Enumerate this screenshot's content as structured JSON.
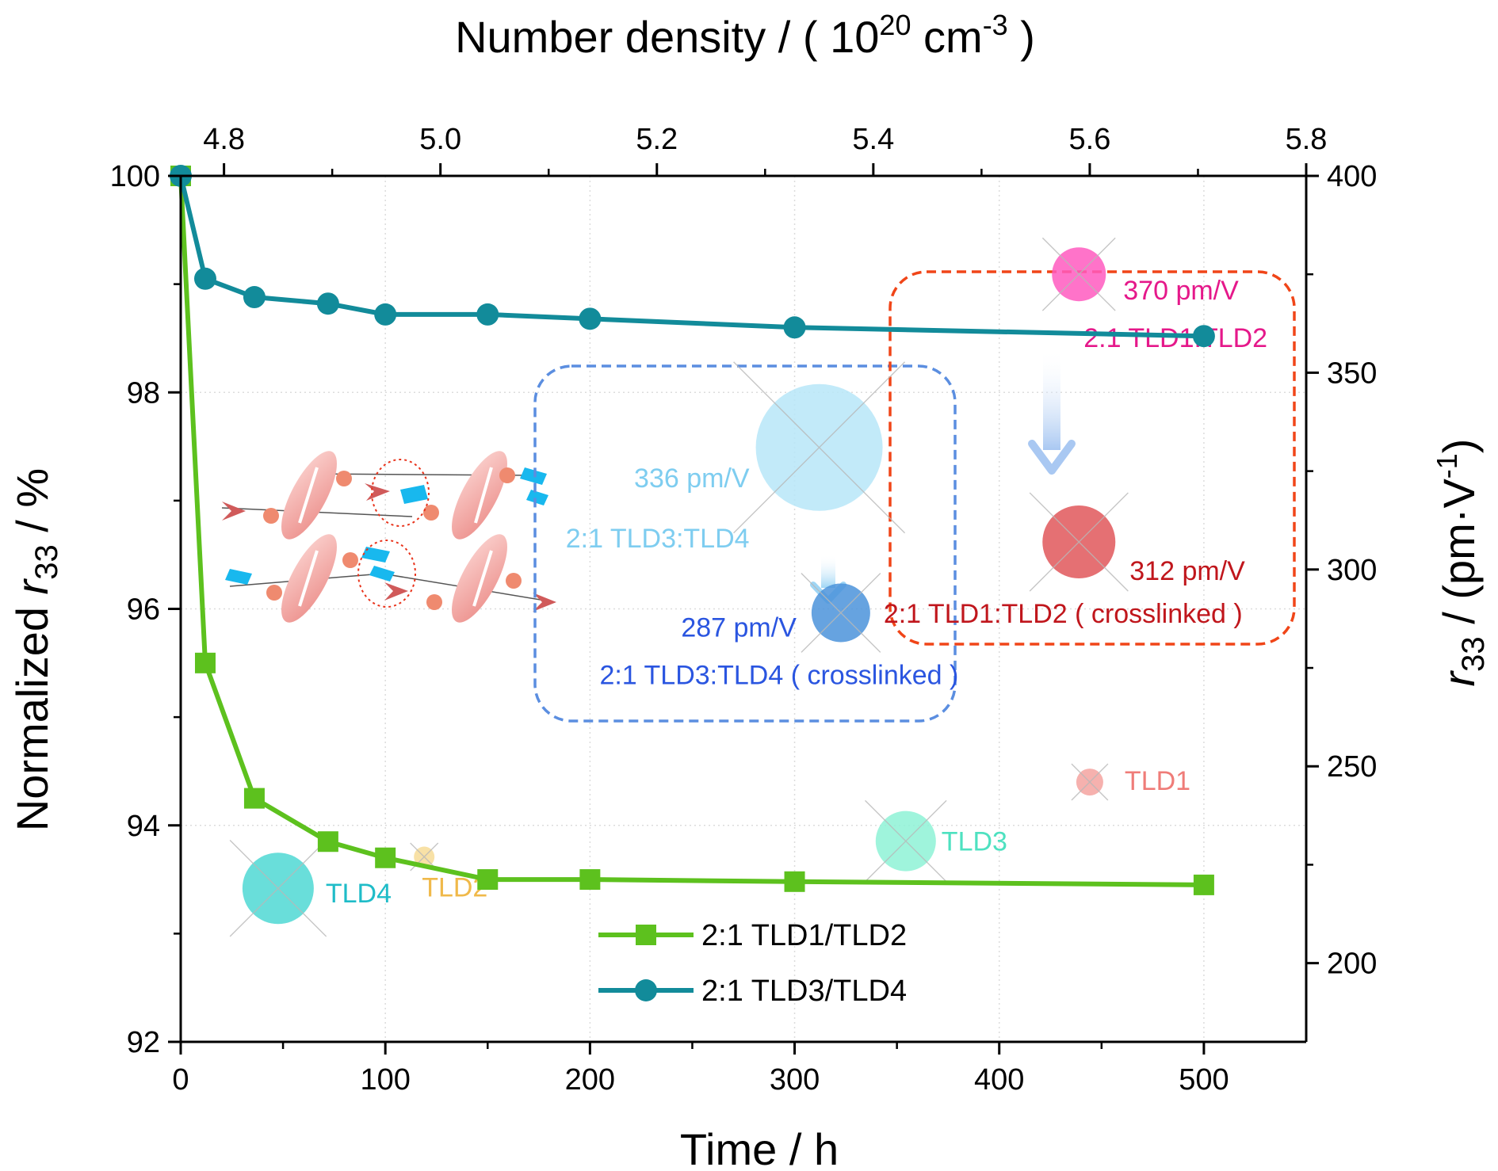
{
  "chart_data": {
    "type": "line",
    "xlabel": "Time / h",
    "ylabel": {
      "pre": "Normalized ",
      "it": "r",
      "sub": "33",
      "post": " / %"
    },
    "x2label": {
      "pre": "Number density / ( 10",
      "sup1": "20",
      "mid": " cm",
      "sup2": "-3",
      "post": " )"
    },
    "y2label": {
      "it": "r",
      "sub": "33",
      "pre": " / (pm·V",
      "sup": "-1",
      "post": ")"
    },
    "xlim": [
      0,
      550
    ],
    "ylim": [
      92,
      100
    ],
    "x2lim": [
      4.76,
      5.8
    ],
    "y2lim": [
      180,
      400
    ],
    "xticks": [
      "0",
      "100",
      "200",
      "300",
      "400",
      "500"
    ],
    "yticks": [
      "92",
      "94",
      "96",
      "98",
      "100"
    ],
    "x2ticks": [
      "4.8",
      "5.0",
      "5.2",
      "5.4",
      "5.6",
      "5.8"
    ],
    "y2ticks": [
      "200",
      "250",
      "300",
      "350",
      "400"
    ],
    "grid": true,
    "legend_position": "bottom-center",
    "series": [
      {
        "name": "2:1 TLD1/TLD2",
        "color": "#5dc11e",
        "marker": "square",
        "points": [
          [
            0,
            100
          ],
          [
            12,
            95.5
          ],
          [
            36,
            94.25
          ],
          [
            72,
            93.85
          ],
          [
            100,
            93.7
          ],
          [
            150,
            93.5
          ],
          [
            200,
            93.5
          ],
          [
            300,
            93.48
          ],
          [
            500,
            93.45
          ]
        ]
      },
      {
        "name": "2:1 TLD3/TLD4",
        "color": "#128b9a",
        "marker": "circle",
        "points": [
          [
            0,
            100
          ],
          [
            12,
            99.05
          ],
          [
            36,
            98.88
          ],
          [
            72,
            98.82
          ],
          [
            100,
            98.72
          ],
          [
            150,
            98.72
          ],
          [
            200,
            98.68
          ],
          [
            300,
            98.6
          ],
          [
            500,
            98.52
          ]
        ]
      }
    ],
    "bubbles": [
      {
        "id": "tld1",
        "label": "TLD1",
        "x2": 5.6,
        "y2": 246,
        "r": 17,
        "color": "#f4a3a0",
        "label_color": "#ef7c78"
      },
      {
        "id": "tld2",
        "label": "TLD2",
        "x2": 4.985,
        "y2": 227,
        "r": 13,
        "color": "#f7dc96",
        "label_color": "#f0b94a"
      },
      {
        "id": "tld3",
        "label": "TLD3",
        "x2": 5.43,
        "y2": 231,
        "r": 38,
        "color": "#8ef2d6",
        "label_color": "#4ee1c0"
      },
      {
        "id": "tld4",
        "label": "TLD4",
        "x2": 4.85,
        "y2": 219,
        "r": 45,
        "color": "#4fd8d3",
        "label_color": "#1fbcc8"
      },
      {
        "id": "tld12",
        "value_label": "370 pm/V",
        "label": "2:1 TLD1:TLD2",
        "x2": 5.59,
        "y2": 375,
        "r": 34,
        "color": "#ff5ac0",
        "label_color": "#e5188a"
      },
      {
        "id": "tld12x",
        "value_label": "312 pm/V",
        "label": "2:1 TLD1:TLD2 ( crosslinked )",
        "x2": 5.59,
        "y2": 307,
        "r": 46,
        "color": "#e0575b",
        "label_color": "#c0161c"
      },
      {
        "id": "tld34",
        "value_label": "336 pm/V",
        "label": "2:1 TLD3:TLD4",
        "x2": 5.35,
        "y2": 331,
        "r": 80,
        "color": "#b7e6f8",
        "label_color": "#7ecdf0"
      },
      {
        "id": "tld34x",
        "value_label": "287 pm/V",
        "label": "2:1 TLD3:TLD4 ( crosslinked )",
        "x2": 5.37,
        "y2": 289,
        "r": 37,
        "color": "#4b93db",
        "label_color": "#2a55e0"
      }
    ],
    "boxes": [
      {
        "id": "box-blue",
        "color": "#5b8ee0"
      },
      {
        "id": "box-red",
        "color": "#f04518"
      }
    ],
    "inset": "molecular crosslinking schematic"
  }
}
